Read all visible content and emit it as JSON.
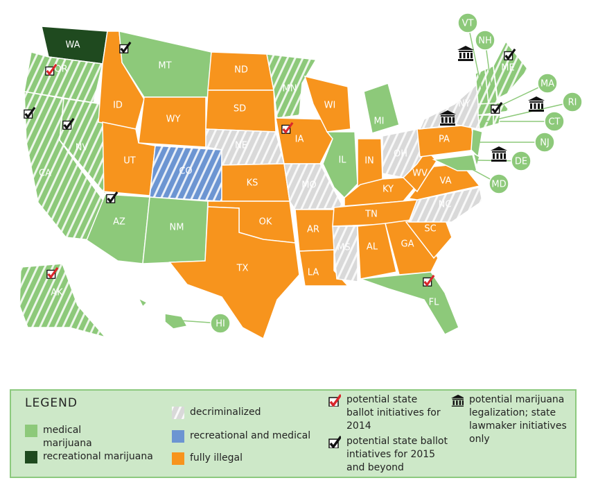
{
  "map": {
    "states": [
      "WA",
      "OR",
      "CA",
      "NV",
      "ID",
      "MT",
      "WY",
      "UT",
      "CO",
      "AZ",
      "NM",
      "ND",
      "SD",
      "NE",
      "KS",
      "OK",
      "TX",
      "MN",
      "IA",
      "MO",
      "AR",
      "LA",
      "WI",
      "IL",
      "MI",
      "IN",
      "OH",
      "KY",
      "TN",
      "MS",
      "AL",
      "GA",
      "FL",
      "SC",
      "NC",
      "VA",
      "WV",
      "PA",
      "NY",
      "VT",
      "NH",
      "ME",
      "MA",
      "CT",
      "RI",
      "NJ",
      "DE",
      "MD",
      "AK",
      "HI"
    ]
  },
  "legend": {
    "title": "LEGEND",
    "items": [
      {
        "label": "medical marijuana",
        "color": "#8dc97a"
      },
      {
        "label": "recreational marijuana",
        "color": "#1f4a1f"
      },
      {
        "label": "decriminalized",
        "color": "#d9d9d9"
      },
      {
        "label": "recreational and medical",
        "color": "#6c95d2"
      },
      {
        "label": "fully illegal",
        "color": "#f7941d"
      },
      {
        "label": "potential state ballot initiatives for 2014",
        "color": "#d9262b"
      },
      {
        "label": "potential state ballot intiatives for 2015 and beyond",
        "color": "#111111"
      },
      {
        "label": "potential marijuana legalization; state lawmaker initiatives only",
        "color": "#111111"
      }
    ]
  }
}
